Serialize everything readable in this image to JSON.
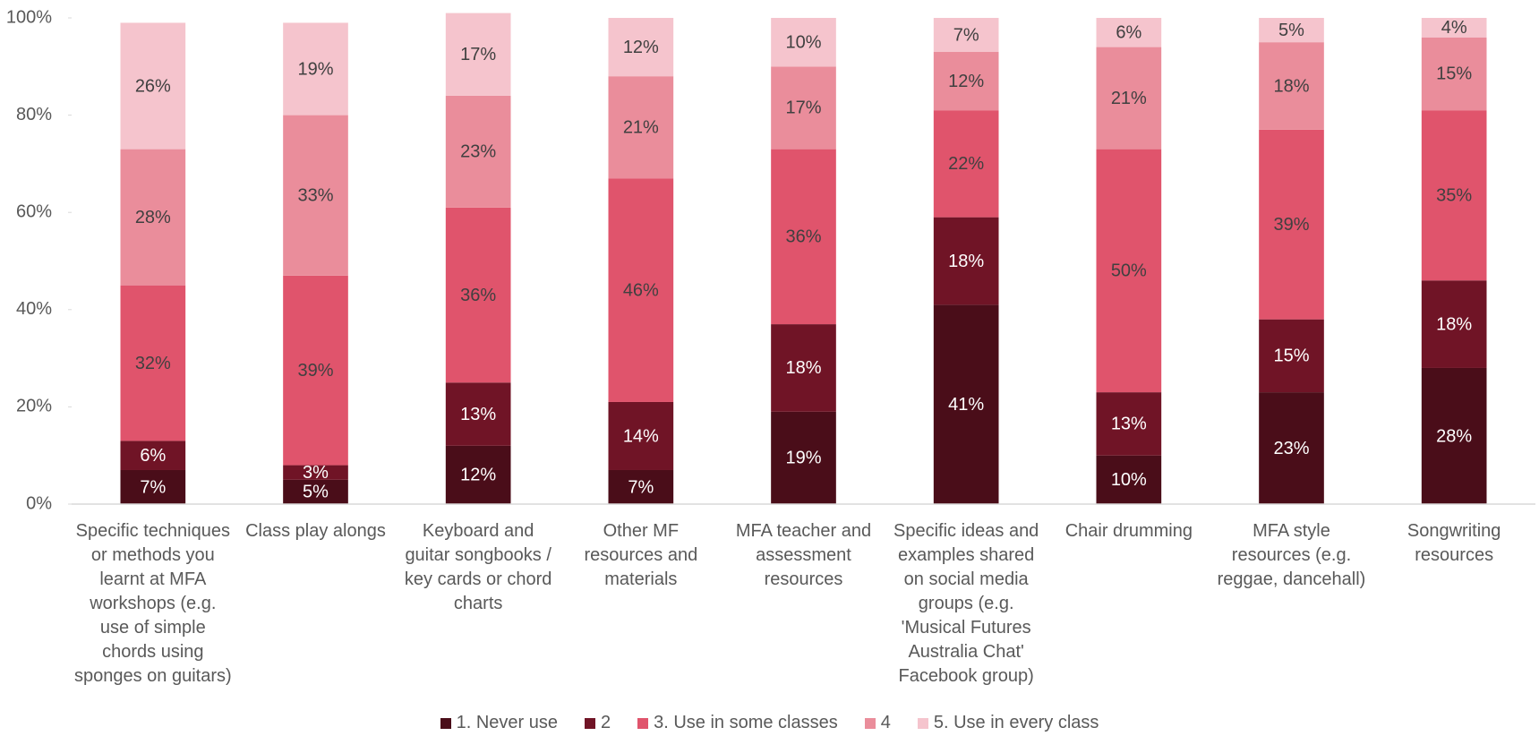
{
  "chart_data": {
    "type": "stacked_bar",
    "categories": [
      "Specific techniques or methods you learnt at MFA workshops (e.g. use of simple chords using sponges on guitars)",
      "Class play alongs",
      "Keyboard and guitar songbooks / key cards or chord charts",
      "Other MF resources and materials",
      "MFA teacher and assessment resources",
      "Specific ideas and examples shared on social media groups (e.g. 'Musical Futures Australia Chat' Facebook group)",
      "Chair drumming",
      "MFA style resources (e.g. reggae, dancehall)",
      "Songwriting resources"
    ],
    "series": [
      {
        "name": "1. Never use",
        "color": "#4a0d19",
        "values": [
          7,
          5,
          12,
          7,
          19,
          41,
          10,
          23,
          28
        ],
        "value_labels": [
          "7%",
          "5%",
          "12%",
          "7%",
          "19%",
          "41%",
          "10%",
          "23%",
          "28%"
        ]
      },
      {
        "name": "2",
        "color": "#701426",
        "values": [
          6,
          3,
          13,
          14,
          18,
          18,
          13,
          15,
          18
        ],
        "value_labels": [
          "6%",
          "3%",
          "13%",
          "14%",
          "18%",
          "18%",
          "13%",
          "15%",
          "18%"
        ]
      },
      {
        "name": "3. Use in some classes",
        "color": "#e0546c",
        "values": [
          32,
          39,
          36,
          46,
          36,
          22,
          50,
          39,
          35
        ],
        "value_labels": [
          "32%",
          "39%",
          "36%",
          "46%",
          "36%",
          "22%",
          "50%",
          "39%",
          "35%"
        ]
      },
      {
        "name": "4",
        "color": "#ea8d9b",
        "values": [
          28,
          33,
          23,
          21,
          17,
          12,
          21,
          18,
          15
        ],
        "value_labels": [
          "28%",
          "33%",
          "23%",
          "21%",
          "17%",
          "12%",
          "21%",
          "18%",
          "15%"
        ]
      },
      {
        "name": "5. Use in every class",
        "color": "#f5c4cd",
        "values": [
          26,
          19,
          17,
          12,
          10,
          7,
          6,
          5,
          4
        ],
        "value_labels": [
          "26%",
          "19%",
          "17%",
          "12%",
          "10%",
          "7%",
          "6%",
          "5%",
          "4%"
        ]
      }
    ],
    "ylim": [
      0,
      100
    ],
    "yticks": [
      {
        "value": 0,
        "label": "0%"
      },
      {
        "value": 20,
        "label": "20%"
      },
      {
        "value": 40,
        "label": "40%"
      },
      {
        "value": 60,
        "label": "60%"
      },
      {
        "value": 80,
        "label": "80%"
      },
      {
        "value": 100,
        "label": "100%"
      }
    ],
    "legend": "bottom"
  }
}
